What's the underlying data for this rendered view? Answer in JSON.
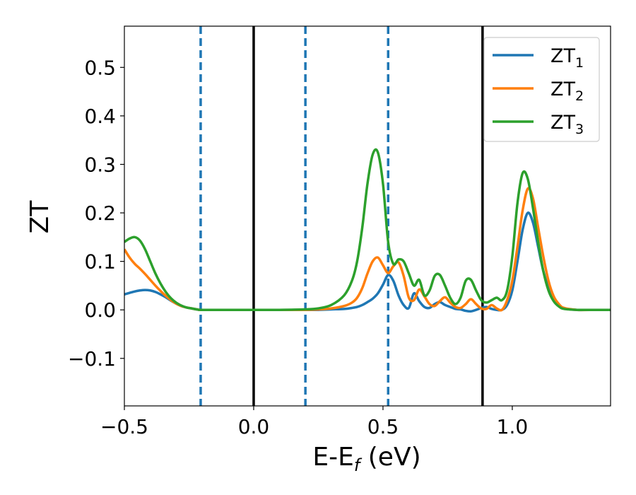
{
  "chart_data": {
    "type": "line",
    "xlabel": {
      "main": "E-E",
      "sub": "f",
      "unit": " (eV)"
    },
    "ylabel": "ZT",
    "xlim": [
      -0.5,
      1.38
    ],
    "ylim": [
      -0.198,
      0.585
    ],
    "xticks": [
      -0.5,
      0.0,
      0.5,
      1.0
    ],
    "xtick_labels": [
      "−0.5",
      "0.0",
      "0.5",
      "1.0"
    ],
    "yticks": [
      -0.1,
      0.0,
      0.1,
      0.2,
      0.3,
      0.4,
      0.5
    ],
    "ytick_labels": [
      "−0.1",
      "0.0",
      "0.1",
      "0.2",
      "0.3",
      "0.4",
      "0.5"
    ],
    "grid": false,
    "legend_position": "top-right",
    "vlines_solid": [
      0.0,
      0.885
    ],
    "vlines_dashed": [
      -0.205,
      0.2,
      0.52
    ],
    "colors": {
      "ZT1": "#1f77b4",
      "ZT2": "#ff7f0e",
      "ZT3": "#2ca02c",
      "solid_line": "#000000",
      "dashed_line": "#1f77b4"
    },
    "series": [
      {
        "name": "ZT",
        "sub": "1",
        "color": "#1f77b4",
        "x": [
          -0.5,
          -0.48,
          -0.46,
          -0.44,
          -0.42,
          -0.4,
          -0.38,
          -0.36,
          -0.34,
          -0.32,
          -0.3,
          -0.28,
          -0.26,
          -0.24,
          -0.22,
          -0.2,
          -0.1,
          0.0,
          0.1,
          0.2,
          0.25,
          0.3,
          0.35,
          0.38,
          0.4,
          0.42,
          0.44,
          0.46,
          0.48,
          0.5,
          0.52,
          0.54,
          0.56,
          0.58,
          0.6,
          0.62,
          0.64,
          0.66,
          0.68,
          0.7,
          0.72,
          0.74,
          0.76,
          0.78,
          0.8,
          0.82,
          0.84,
          0.86,
          0.88,
          0.9,
          0.92,
          0.94,
          0.96,
          0.98,
          1.0,
          1.02,
          1.04,
          1.06,
          1.08,
          1.1,
          1.12,
          1.14,
          1.16,
          1.18,
          1.2,
          1.25,
          1.3,
          1.38
        ],
        "y": [
          0.032,
          0.035,
          0.038,
          0.04,
          0.041,
          0.04,
          0.037,
          0.032,
          0.026,
          0.019,
          0.013,
          0.008,
          0.005,
          0.003,
          0.001,
          0.0,
          0.0,
          0.0,
          0.0,
          0.0,
          0.0,
          0.001,
          0.002,
          0.004,
          0.006,
          0.01,
          0.016,
          0.023,
          0.034,
          0.052,
          0.072,
          0.06,
          0.03,
          0.01,
          0.004,
          0.034,
          0.018,
          0.006,
          0.004,
          0.012,
          0.016,
          0.01,
          0.006,
          0.002,
          0.001,
          -0.002,
          -0.003,
          0.0,
          0.004,
          0.006,
          0.002,
          0.0,
          0.0,
          0.01,
          0.04,
          0.1,
          0.165,
          0.2,
          0.18,
          0.13,
          0.08,
          0.045,
          0.02,
          0.008,
          0.003,
          0.0,
          0.0,
          0.0
        ]
      },
      {
        "name": "ZT",
        "sub": "2",
        "color": "#ff7f0e",
        "x": [
          -0.5,
          -0.48,
          -0.46,
          -0.44,
          -0.42,
          -0.4,
          -0.38,
          -0.36,
          -0.34,
          -0.32,
          -0.3,
          -0.28,
          -0.26,
          -0.24,
          -0.22,
          -0.2,
          -0.1,
          0.0,
          0.1,
          0.2,
          0.25,
          0.3,
          0.35,
          0.38,
          0.4,
          0.42,
          0.44,
          0.46,
          0.48,
          0.5,
          0.52,
          0.54,
          0.56,
          0.58,
          0.6,
          0.62,
          0.64,
          0.66,
          0.68,
          0.7,
          0.72,
          0.74,
          0.76,
          0.78,
          0.8,
          0.82,
          0.84,
          0.86,
          0.88,
          0.9,
          0.92,
          0.94,
          0.96,
          0.98,
          1.0,
          1.02,
          1.04,
          1.06,
          1.08,
          1.1,
          1.12,
          1.14,
          1.16,
          1.18,
          1.2,
          1.25,
          1.3,
          1.38
        ],
        "y": [
          0.125,
          0.108,
          0.095,
          0.085,
          0.074,
          0.062,
          0.05,
          0.039,
          0.029,
          0.02,
          0.013,
          0.008,
          0.005,
          0.003,
          0.001,
          0.0,
          0.0,
          0.0,
          0.0,
          0.0,
          0.001,
          0.003,
          0.008,
          0.015,
          0.025,
          0.045,
          0.075,
          0.1,
          0.108,
          0.092,
          0.076,
          0.09,
          0.098,
          0.07,
          0.025,
          0.02,
          0.042,
          0.028,
          0.012,
          0.008,
          0.018,
          0.026,
          0.015,
          0.006,
          0.004,
          0.012,
          0.022,
          0.012,
          0.003,
          0.002,
          0.01,
          0.003,
          0.0,
          0.02,
          0.06,
          0.13,
          0.205,
          0.25,
          0.23,
          0.17,
          0.11,
          0.06,
          0.028,
          0.012,
          0.004,
          0.0,
          0.0,
          0.0
        ]
      },
      {
        "name": "ZT",
        "sub": "3",
        "color": "#2ca02c",
        "x": [
          -0.5,
          -0.48,
          -0.46,
          -0.44,
          -0.42,
          -0.4,
          -0.38,
          -0.36,
          -0.34,
          -0.32,
          -0.3,
          -0.28,
          -0.26,
          -0.24,
          -0.22,
          -0.2,
          -0.1,
          0.0,
          0.1,
          0.2,
          0.25,
          0.3,
          0.35,
          0.38,
          0.4,
          0.42,
          0.44,
          0.46,
          0.48,
          0.5,
          0.52,
          0.54,
          0.56,
          0.58,
          0.6,
          0.62,
          0.64,
          0.66,
          0.68,
          0.7,
          0.72,
          0.74,
          0.76,
          0.78,
          0.8,
          0.82,
          0.84,
          0.86,
          0.88,
          0.9,
          0.92,
          0.94,
          0.96,
          0.98,
          1.0,
          1.02,
          1.04,
          1.06,
          1.08,
          1.1,
          1.12,
          1.14,
          1.16,
          1.18,
          1.2,
          1.25,
          1.3,
          1.38
        ],
        "y": [
          0.14,
          0.147,
          0.15,
          0.143,
          0.125,
          0.1,
          0.075,
          0.054,
          0.037,
          0.024,
          0.015,
          0.009,
          0.005,
          0.003,
          0.001,
          0.0,
          0.0,
          0.0,
          0.0,
          0.001,
          0.003,
          0.01,
          0.03,
          0.06,
          0.1,
          0.17,
          0.26,
          0.32,
          0.325,
          0.26,
          0.14,
          0.095,
          0.104,
          0.1,
          0.075,
          0.05,
          0.062,
          0.03,
          0.04,
          0.07,
          0.072,
          0.05,
          0.025,
          0.012,
          0.025,
          0.06,
          0.062,
          0.04,
          0.02,
          0.015,
          0.02,
          0.025,
          0.02,
          0.04,
          0.11,
          0.22,
          0.282,
          0.27,
          0.21,
          0.14,
          0.08,
          0.04,
          0.018,
          0.007,
          0.002,
          0.0,
          0.0,
          0.0
        ]
      }
    ]
  }
}
